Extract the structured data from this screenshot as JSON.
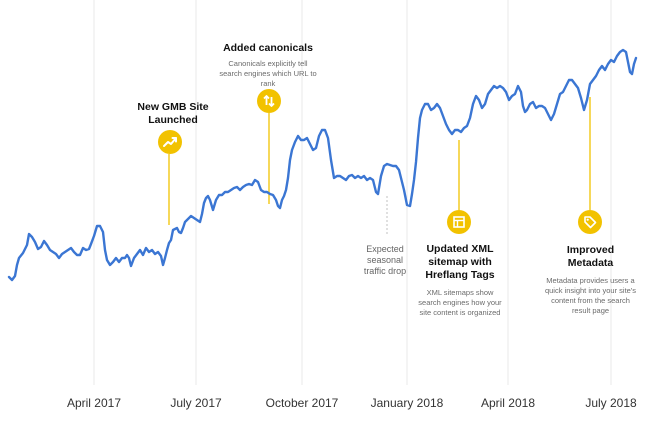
{
  "chart_data": {
    "type": "line",
    "title": "",
    "xlabel": "",
    "ylabel": "",
    "x_ticks": [
      "April 2017",
      "July 2017",
      "October 2017",
      "January 2018",
      "April 2018",
      "July 2018"
    ],
    "series": [
      {
        "color": "#3b76d3",
        "points": [
          [
            0,
            277
          ],
          [
            3,
            280
          ],
          [
            6,
            276
          ],
          [
            8,
            265
          ],
          [
            10,
            258
          ],
          [
            14,
            253
          ],
          [
            18,
            245
          ],
          [
            20,
            234
          ],
          [
            23,
            237
          ],
          [
            26,
            242
          ],
          [
            29,
            249
          ],
          [
            32,
            247
          ],
          [
            35,
            241
          ],
          [
            38,
            245
          ],
          [
            41,
            250
          ],
          [
            44,
            252
          ],
          [
            47,
            254
          ],
          [
            50,
            258
          ],
          [
            53,
            254
          ],
          [
            56,
            252
          ],
          [
            59,
            250
          ],
          [
            62,
            248
          ],
          [
            65,
            252
          ],
          [
            68,
            255
          ],
          [
            71,
            255
          ],
          [
            74,
            248
          ],
          [
            77,
            250
          ],
          [
            80,
            249
          ],
          [
            82,
            244
          ],
          [
            85,
            236
          ],
          [
            88,
            226
          ],
          [
            91,
            226
          ],
          [
            94,
            232
          ],
          [
            96,
            250
          ],
          [
            98,
            260
          ],
          [
            101,
            265
          ],
          [
            104,
            262
          ],
          [
            107,
            258
          ],
          [
            110,
            262
          ],
          [
            113,
            258
          ],
          [
            116,
            258
          ],
          [
            118,
            255
          ],
          [
            120,
            258
          ],
          [
            122,
            266
          ],
          [
            125,
            258
          ],
          [
            128,
            254
          ],
          [
            131,
            250
          ],
          [
            134,
            255
          ],
          [
            137,
            248
          ],
          [
            140,
            252
          ],
          [
            143,
            250
          ],
          [
            146,
            254
          ],
          [
            149,
            252
          ],
          [
            152,
            256
          ],
          [
            154,
            265
          ],
          [
            156,
            258
          ],
          [
            158,
            250
          ],
          [
            160,
            243
          ],
          [
            162,
            240
          ],
          [
            164,
            230
          ],
          [
            166,
            229
          ],
          [
            168,
            228
          ],
          [
            170,
            232
          ],
          [
            172,
            233
          ],
          [
            174,
            228
          ],
          [
            176,
            222
          ],
          [
            179,
            219
          ],
          [
            182,
            216
          ],
          [
            185,
            218
          ],
          [
            188,
            220
          ],
          [
            191,
            222
          ],
          [
            193,
            214
          ],
          [
            195,
            203
          ],
          [
            197,
            198
          ],
          [
            199,
            196
          ],
          [
            201,
            200
          ],
          [
            204,
            210
          ],
          [
            207,
            200
          ],
          [
            210,
            195
          ],
          [
            213,
            195
          ],
          [
            216,
            192
          ],
          [
            219,
            192
          ],
          [
            222,
            190
          ],
          [
            225,
            188
          ],
          [
            228,
            187
          ],
          [
            231,
            190
          ],
          [
            234,
            187
          ],
          [
            237,
            185
          ],
          [
            240,
            184
          ],
          [
            243,
            185
          ],
          [
            246,
            180
          ],
          [
            249,
            182
          ],
          [
            252,
            190
          ],
          [
            255,
            192
          ],
          [
            258,
            192
          ],
          [
            261,
            194
          ],
          [
            264,
            195
          ],
          [
            267,
            200
          ],
          [
            269,
            206
          ],
          [
            271,
            208
          ],
          [
            273,
            200
          ],
          [
            275,
            196
          ],
          [
            277,
            190
          ],
          [
            279,
            178
          ],
          [
            281,
            160
          ],
          [
            283,
            150
          ],
          [
            286,
            142
          ],
          [
            289,
            136
          ],
          [
            292,
            140
          ],
          [
            295,
            140
          ],
          [
            298,
            138
          ],
          [
            301,
            144
          ],
          [
            304,
            150
          ],
          [
            307,
            148
          ],
          [
            310,
            136
          ],
          [
            313,
            130
          ],
          [
            316,
            130
          ],
          [
            319,
            138
          ],
          [
            322,
            160
          ],
          [
            325,
            178
          ],
          [
            328,
            176
          ],
          [
            331,
            176
          ],
          [
            334,
            178
          ],
          [
            337,
            180
          ],
          [
            340,
            176
          ],
          [
            343,
            175
          ],
          [
            346,
            178
          ],
          [
            349,
            176
          ],
          [
            352,
            178
          ],
          [
            355,
            176
          ],
          [
            358,
            180
          ],
          [
            361,
            178
          ],
          [
            364,
            180
          ],
          [
            367,
            192
          ],
          [
            369,
            194
          ],
          [
            372,
            176
          ],
          [
            375,
            166
          ],
          [
            378,
            164
          ],
          [
            381,
            165
          ],
          [
            384,
            166
          ],
          [
            387,
            166
          ],
          [
            390,
            170
          ],
          [
            393,
            182
          ],
          [
            395,
            190
          ],
          [
            398,
            205
          ],
          [
            401,
            206
          ],
          [
            403,
            194
          ],
          [
            405,
            180
          ],
          [
            407,
            162
          ],
          [
            409,
            138
          ],
          [
            411,
            118
          ],
          [
            413,
            110
          ],
          [
            416,
            104
          ],
          [
            419,
            104
          ],
          [
            422,
            110
          ],
          [
            425,
            108
          ],
          [
            428,
            104
          ],
          [
            431,
            108
          ],
          [
            434,
            116
          ],
          [
            437,
            124
          ],
          [
            440,
            130
          ],
          [
            443,
            134
          ],
          [
            446,
            130
          ],
          [
            449,
            130
          ],
          [
            452,
            132
          ],
          [
            455,
            128
          ],
          [
            458,
            126
          ],
          [
            461,
            118
          ],
          [
            464,
            104
          ],
          [
            467,
            96
          ],
          [
            470,
            100
          ],
          [
            473,
            108
          ],
          [
            476,
            104
          ],
          [
            479,
            94
          ],
          [
            482,
            90
          ],
          [
            485,
            86
          ],
          [
            488,
            88
          ],
          [
            491,
            86
          ],
          [
            494,
            88
          ],
          [
            497,
            92
          ],
          [
            500,
            100
          ],
          [
            503,
            96
          ],
          [
            506,
            94
          ],
          [
            509,
            86
          ],
          [
            512,
            92
          ],
          [
            514,
            106
          ],
          [
            516,
            112
          ],
          [
            518,
            110
          ],
          [
            521,
            104
          ],
          [
            524,
            102
          ],
          [
            527,
            108
          ],
          [
            530,
            106
          ],
          [
            533,
            106
          ],
          [
            536,
            108
          ],
          [
            539,
            114
          ],
          [
            542,
            120
          ],
          [
            545,
            114
          ],
          [
            548,
            104
          ],
          [
            551,
            94
          ],
          [
            554,
            92
          ],
          [
            557,
            86
          ],
          [
            560,
            80
          ],
          [
            563,
            80
          ],
          [
            566,
            84
          ],
          [
            569,
            88
          ],
          [
            572,
            98
          ],
          [
            575,
            110
          ],
          [
            578,
            100
          ],
          [
            581,
            84
          ],
          [
            584,
            80
          ],
          [
            587,
            76
          ],
          [
            590,
            70
          ],
          [
            593,
            66
          ],
          [
            596,
            70
          ],
          [
            599,
            64
          ],
          [
            602,
            60
          ],
          [
            605,
            62
          ],
          [
            608,
            56
          ],
          [
            611,
            52
          ],
          [
            614,
            50
          ],
          [
            617,
            52
          ],
          [
            619,
            62
          ],
          [
            621,
            72
          ],
          [
            623,
            74
          ],
          [
            625,
            64
          ],
          [
            627,
            58
          ]
        ]
      }
    ],
    "annotations": [
      {
        "title": "New GMB Site Launched",
        "text": ""
      },
      {
        "title": "Added canonicals",
        "text": "Canonicals explicitly tell search engines which URL to rank"
      },
      {
        "title": "",
        "text": "Expected seasonal traffic drop"
      },
      {
        "title": "Updated XML sitemap with Hreflang Tags",
        "text": "XML sitemaps show search engines how your site content is organized"
      },
      {
        "title": "Improved Metadata",
        "text": "Metadata provides users a quick insight into your site's content from the search result page"
      }
    ],
    "grid": "vertical lines at tick positions",
    "legend": "none"
  },
  "colors": {
    "line": "#3b76d3",
    "grid": "#e9e9e9",
    "accent": "#f2c200",
    "muted_connector": "#cfcfcf"
  },
  "icons": [
    "trending-up-icon",
    "swap-vertical-arrows-icon",
    "sitemap-document-icon",
    "tag-icon"
  ]
}
